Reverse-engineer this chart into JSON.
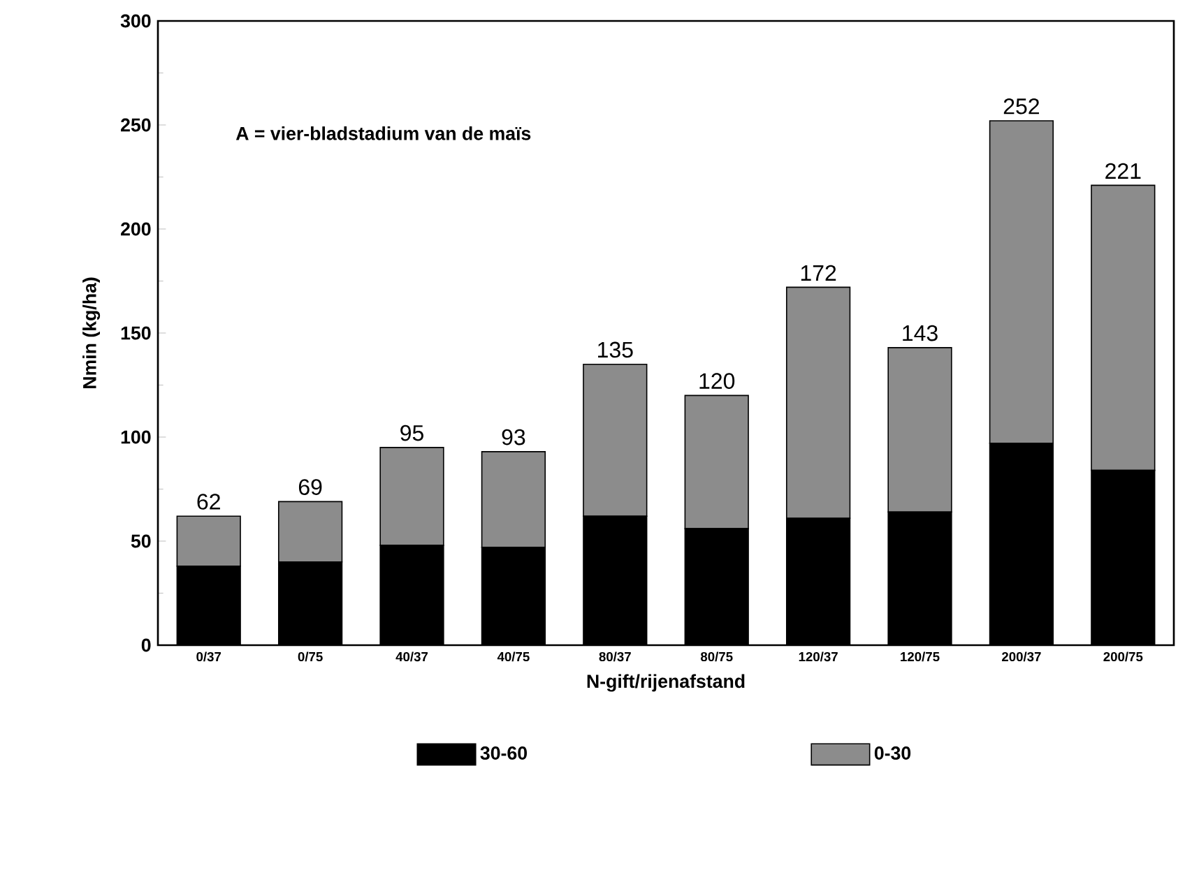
{
  "chart_data": {
    "type": "bar",
    "stacked": true,
    "xlabel": "N-gift/rijenafstand",
    "ylabel": "Nmin (kg/ha)",
    "annotations": [
      "A = vier-bladstadium van de maïs"
    ],
    "categories": [
      "0/37",
      "0/75",
      "40/37",
      "40/75",
      "80/37",
      "80/75",
      "120/37",
      "120/75",
      "200/37",
      "200/75"
    ],
    "series": [
      {
        "name": "30-60",
        "color": "#000000",
        "values": [
          38,
          40,
          48,
          47,
          62,
          56,
          61,
          64,
          97,
          84
        ]
      },
      {
        "name": "0-30",
        "color": "#8c8c8c",
        "values": [
          24,
          29,
          47,
          46,
          73,
          64,
          111,
          79,
          155,
          137
        ]
      }
    ],
    "totals": [
      "62",
      "69",
      "95",
      "93",
      "135",
      "120",
      "172",
      "143",
      "252",
      "221"
    ],
    "ylim": [
      0,
      300
    ],
    "yticks": [
      0,
      50,
      100,
      150,
      200,
      250,
      300
    ],
    "legend": "bottom",
    "grid": false
  }
}
